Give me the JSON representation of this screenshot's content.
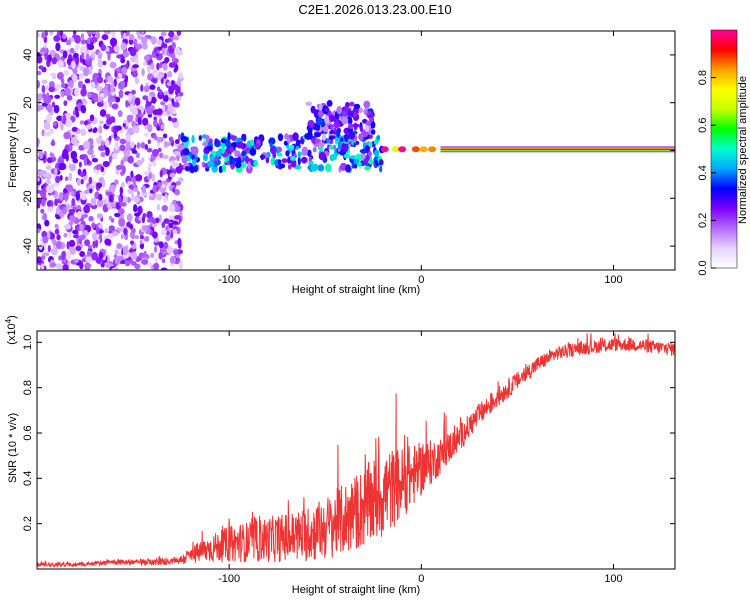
{
  "title": "C2E1.2026.013.23.00.E10",
  "chart_data": [
    {
      "type": "heatmap",
      "xlabel": "Height of straight line (km)",
      "ylabel": "Frequency (Hz)",
      "xlim": [
        -200,
        132
      ],
      "ylim": [
        -50,
        50
      ],
      "xticks": [
        -100,
        0,
        100
      ],
      "yticks": [
        -40,
        -20,
        0,
        20,
        40
      ],
      "xtick_labels": [
        "-100",
        "0",
        "100"
      ],
      "ytick_labels": [
        "-40",
        "-20",
        "0",
        "20",
        "40"
      ],
      "colorbar": {
        "label": "Normalized spectral amplitude",
        "range": [
          0,
          1
        ],
        "ticks": [
          0.0,
          0.2,
          0.4,
          0.6,
          0.8
        ],
        "tick_labels": [
          "0.0",
          "0.2",
          "0.4",
          "0.6",
          "0.8"
        ],
        "colormap": [
          "#ffffff",
          "#e6d2ff",
          "#b469ff",
          "#7a00ff",
          "#0000ff",
          "#00a8ff",
          "#00ffcc",
          "#00ff00",
          "#c8ff00",
          "#ffff00",
          "#ffa000",
          "#ff0000",
          "#ff00a0"
        ]
      },
      "regions": [
        {
          "name": "noise-field",
          "x_range": [
            -200,
            -125
          ],
          "y_range": [
            -50,
            50
          ],
          "amplitude": 0.18
        },
        {
          "name": "scattered-cloud",
          "x_range": [
            -125,
            -20
          ],
          "y_range": [
            -8,
            6
          ],
          "amplitude": 0.35
        },
        {
          "name": "upward-drift",
          "x_range": [
            -60,
            -25
          ],
          "y_range": [
            5,
            20
          ],
          "amplitude": 0.25
        },
        {
          "name": "steady-tone",
          "x_range": [
            10,
            132
          ],
          "y_range": [
            -1,
            2
          ],
          "amplitude": 0.95
        }
      ]
    },
    {
      "type": "line",
      "xlabel": "Height of straight line (km)",
      "ylabel": "SNR (10 * v/v)",
      "multiplier_label": "(x10",
      "multiplier_exponent": "4",
      "multiplier_close": ")",
      "xlim": [
        -200,
        132
      ],
      "ylim": [
        0,
        1.05
      ],
      "xticks": [
        -100,
        0,
        100
      ],
      "yticks": [
        0.2,
        0.4,
        0.6,
        0.8,
        1.0
      ],
      "xtick_labels": [
        "-100",
        "0",
        "100"
      ],
      "ytick_labels": [
        "0.2",
        "0.4",
        "0.6",
        "0.8",
        "1.0"
      ],
      "series": [
        {
          "name": "SNR",
          "color": "#ee3333",
          "x": [
            -200,
            -180,
            -160,
            -140,
            -125,
            -120,
            -110,
            -100,
            -90,
            -80,
            -70,
            -60,
            -50,
            -40,
            -30,
            -20,
            -10,
            0,
            10,
            20,
            30,
            40,
            50,
            60,
            70,
            80,
            90,
            100,
            110,
            120,
            132
          ],
          "y": [
            0.02,
            0.02,
            0.03,
            0.03,
            0.04,
            0.06,
            0.09,
            0.11,
            0.12,
            0.13,
            0.14,
            0.15,
            0.18,
            0.22,
            0.27,
            0.33,
            0.38,
            0.44,
            0.5,
            0.58,
            0.68,
            0.76,
            0.83,
            0.9,
            0.95,
            0.97,
            0.98,
            0.99,
            0.99,
            0.98,
            0.97
          ],
          "noise": [
            0.01,
            0.01,
            0.01,
            0.015,
            0.02,
            0.04,
            0.06,
            0.08,
            0.09,
            0.1,
            0.11,
            0.12,
            0.14,
            0.16,
            0.18,
            0.2,
            0.16,
            0.12,
            0.08,
            0.06,
            0.05,
            0.045,
            0.04,
            0.035,
            0.03,
            0.03,
            0.03,
            0.03,
            0.03,
            0.03,
            0.03
          ]
        }
      ]
    }
  ]
}
